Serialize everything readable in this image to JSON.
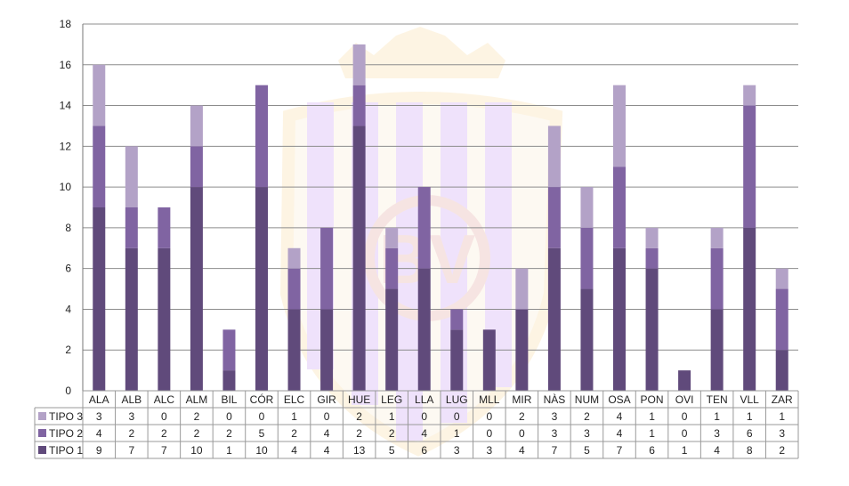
{
  "chart_data": {
    "type": "bar",
    "stacked": true,
    "categories": [
      "ALA",
      "ALB",
      "ALC",
      "ALM",
      "BIL",
      "CÓR",
      "ELC",
      "GIR",
      "HUE",
      "LEG",
      "LLA",
      "LUG",
      "MLL",
      "MIR",
      "NÀS",
      "NUM",
      "OSA",
      "PON",
      "OVI",
      "TEN",
      "VLL",
      "ZAR"
    ],
    "series": [
      {
        "name": "TIPO 1",
        "color": "#604a7b",
        "values": [
          9,
          7,
          7,
          10,
          1,
          10,
          4,
          4,
          13,
          5,
          6,
          3,
          3,
          4,
          7,
          5,
          7,
          6,
          1,
          4,
          8,
          2
        ]
      },
      {
        "name": "TIPO 2",
        "color": "#8064a2",
        "values": [
          4,
          2,
          2,
          2,
          2,
          5,
          2,
          4,
          2,
          2,
          4,
          1,
          0,
          0,
          3,
          3,
          4,
          1,
          0,
          3,
          6,
          3
        ]
      },
      {
        "name": "TIPO 3",
        "color": "#b3a2c7",
        "values": [
          3,
          3,
          0,
          2,
          0,
          0,
          1,
          0,
          2,
          1,
          0,
          0,
          0,
          2,
          3,
          2,
          4,
          1,
          0,
          1,
          1,
          1
        ]
      }
    ],
    "y_ticks": [
      "0",
      "2",
      "4",
      "6",
      "8",
      "10",
      "12",
      "14",
      "16",
      "18"
    ],
    "ylim": [
      0,
      18
    ],
    "grid": true,
    "legend": "data-table-bottom",
    "title": "",
    "xlabel": "",
    "ylabel": ""
  },
  "watermark": {
    "text": "BV"
  }
}
